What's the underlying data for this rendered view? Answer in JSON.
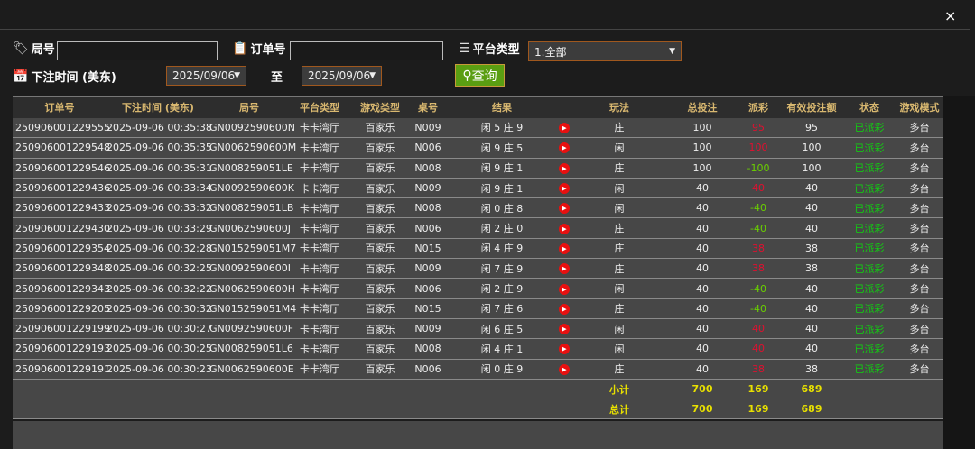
{
  "close_label": "×",
  "filters": {
    "round_label": "局号",
    "round_value": "",
    "order_label": "订单号",
    "order_value": "",
    "platform_label": "平台类型",
    "platform_value": "1.全部",
    "time_label": "下注时间 (美东)",
    "date_from": "2025/09/06",
    "to_label": "至",
    "date_to": "2025/09/06",
    "query_label": "查询"
  },
  "table": {
    "headers": [
      "订单号",
      "下注时间 (美东)",
      "局号",
      "平台类型",
      "游戏类型",
      "桌号",
      "结果",
      "",
      "玩法",
      "总投注",
      "派彩",
      "有效投注额",
      "状态",
      "游戏模式"
    ],
    "rows": [
      {
        "order": "250906001229555",
        "time": "2025-09-06 00:35:38",
        "round": "GN0092590600N",
        "platform": "卡卡湾厅",
        "game": "百家乐",
        "table": "N009",
        "result": "闲 5 庄 9",
        "play": "庄",
        "bet": "100",
        "payout": "95",
        "valid": "95",
        "status": "已派彩",
        "mode": "多台"
      },
      {
        "order": "250906001229548",
        "time": "2025-09-06 00:35:35",
        "round": "GN0062590600M",
        "platform": "卡卡湾厅",
        "game": "百家乐",
        "table": "N006",
        "result": "闲 9 庄 5",
        "play": "闲",
        "bet": "100",
        "payout": "100",
        "valid": "100",
        "status": "已派彩",
        "mode": "多台"
      },
      {
        "order": "250906001229546",
        "time": "2025-09-06 00:35:31",
        "round": "GN008259051LE",
        "platform": "卡卡湾厅",
        "game": "百家乐",
        "table": "N008",
        "result": "闲 9 庄 1",
        "play": "庄",
        "bet": "100",
        "payout": "-100",
        "valid": "100",
        "status": "已派彩",
        "mode": "多台"
      },
      {
        "order": "250906001229436",
        "time": "2025-09-06 00:33:34",
        "round": "GN0092590600K",
        "platform": "卡卡湾厅",
        "game": "百家乐",
        "table": "N009",
        "result": "闲 9 庄 1",
        "play": "闲",
        "bet": "40",
        "payout": "40",
        "valid": "40",
        "status": "已派彩",
        "mode": "多台"
      },
      {
        "order": "250906001229433",
        "time": "2025-09-06 00:33:32",
        "round": "GN008259051LB",
        "platform": "卡卡湾厅",
        "game": "百家乐",
        "table": "N008",
        "result": "闲 0 庄 8",
        "play": "闲",
        "bet": "40",
        "payout": "-40",
        "valid": "40",
        "status": "已派彩",
        "mode": "多台"
      },
      {
        "order": "250906001229430",
        "time": "2025-09-06 00:33:29",
        "round": "GN0062590600J",
        "platform": "卡卡湾厅",
        "game": "百家乐",
        "table": "N006",
        "result": "闲 2 庄 0",
        "play": "庄",
        "bet": "40",
        "payout": "-40",
        "valid": "40",
        "status": "已派彩",
        "mode": "多台"
      },
      {
        "order": "250906001229354",
        "time": "2025-09-06 00:32:28",
        "round": "GN015259051M7",
        "platform": "卡卡湾厅",
        "game": "百家乐",
        "table": "N015",
        "result": "闲 4 庄 9",
        "play": "庄",
        "bet": "40",
        "payout": "38",
        "valid": "38",
        "status": "已派彩",
        "mode": "多台"
      },
      {
        "order": "250906001229348",
        "time": "2025-09-06 00:32:25",
        "round": "GN0092590600I",
        "platform": "卡卡湾厅",
        "game": "百家乐",
        "table": "N009",
        "result": "闲 7 庄 9",
        "play": "庄",
        "bet": "40",
        "payout": "38",
        "valid": "38",
        "status": "已派彩",
        "mode": "多台"
      },
      {
        "order": "250906001229343",
        "time": "2025-09-06 00:32:22",
        "round": "GN0062590600H",
        "platform": "卡卡湾厅",
        "game": "百家乐",
        "table": "N006",
        "result": "闲 2 庄 9",
        "play": "闲",
        "bet": "40",
        "payout": "-40",
        "valid": "40",
        "status": "已派彩",
        "mode": "多台"
      },
      {
        "order": "250906001229205",
        "time": "2025-09-06 00:30:32",
        "round": "GN015259051M4",
        "platform": "卡卡湾厅",
        "game": "百家乐",
        "table": "N015",
        "result": "闲 7 庄 6",
        "play": "庄",
        "bet": "40",
        "payout": "-40",
        "valid": "40",
        "status": "已派彩",
        "mode": "多台"
      },
      {
        "order": "250906001229199",
        "time": "2025-09-06 00:30:27",
        "round": "GN0092590600F",
        "platform": "卡卡湾厅",
        "game": "百家乐",
        "table": "N009",
        "result": "闲 6 庄 5",
        "play": "闲",
        "bet": "40",
        "payout": "40",
        "valid": "40",
        "status": "已派彩",
        "mode": "多台"
      },
      {
        "order": "250906001229193",
        "time": "2025-09-06 00:30:25",
        "round": "GN008259051L6",
        "platform": "卡卡湾厅",
        "game": "百家乐",
        "table": "N008",
        "result": "闲 4 庄 1",
        "play": "闲",
        "bet": "40",
        "payout": "40",
        "valid": "40",
        "status": "已派彩",
        "mode": "多台"
      },
      {
        "order": "250906001229191",
        "time": "2025-09-06 00:30:23",
        "round": "GN0062590600E",
        "platform": "卡卡湾厅",
        "game": "百家乐",
        "table": "N006",
        "result": "闲 0 庄 9",
        "play": "庄",
        "bet": "40",
        "payout": "38",
        "valid": "38",
        "status": "已派彩",
        "mode": "多台"
      }
    ],
    "subtotal": {
      "label": "小计",
      "bet": "700",
      "payout": "169",
      "valid": "689"
    },
    "total": {
      "label": "总计",
      "bet": "700",
      "payout": "169",
      "valid": "689"
    }
  },
  "colors": {
    "payout_positive": "#e01030",
    "payout_negative": "#6ad000",
    "status": "#10d010",
    "header": "#d9b870",
    "sum": "#e8e000",
    "query_button": "#5a9e12"
  }
}
